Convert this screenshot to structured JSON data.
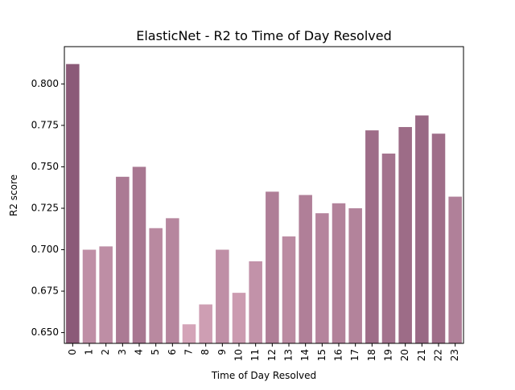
{
  "chart_data": {
    "type": "bar",
    "title": "ElasticNet - R2 to Time of Day Resolved",
    "xlabel": "Time of Day Resolved",
    "ylabel": "R2 score",
    "categories": [
      "0",
      "1",
      "2",
      "3",
      "4",
      "5",
      "6",
      "7",
      "8",
      "9",
      "10",
      "11",
      "12",
      "13",
      "14",
      "15",
      "16",
      "17",
      "18",
      "19",
      "20",
      "21",
      "22",
      "23"
    ],
    "values": [
      0.812,
      0.7,
      0.702,
      0.744,
      0.75,
      0.713,
      0.719,
      0.655,
      0.667,
      0.7,
      0.674,
      0.693,
      0.735,
      0.708,
      0.733,
      0.722,
      0.728,
      0.725,
      0.772,
      0.758,
      0.774,
      0.781,
      0.77,
      0.732
    ],
    "ylim": [
      0.6435,
      0.8225
    ],
    "yticks": [
      0.65,
      0.675,
      0.7,
      0.725,
      0.75,
      0.775,
      0.8
    ],
    "ytick_labels": [
      "0.650",
      "0.675",
      "0.700",
      "0.725",
      "0.750",
      "0.775",
      "0.800"
    ],
    "grid": false,
    "legend": "none",
    "color_light": "#d4a4b8",
    "color_dark": "#8b5a78"
  }
}
